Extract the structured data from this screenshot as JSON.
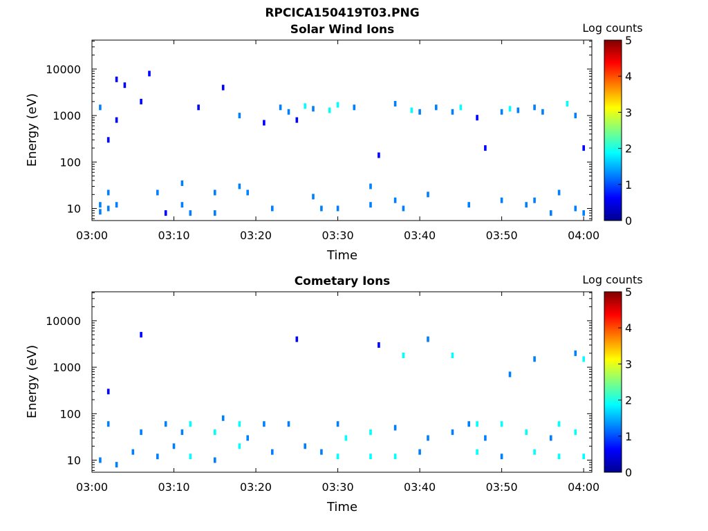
{
  "figure_title": "RPCICA150419T03.PNG",
  "colormap": [
    "#00008f",
    "#0000ff",
    "#0080ff",
    "#00ffff",
    "#80ff80",
    "#ffff00",
    "#ff8000",
    "#ff0000",
    "#800000"
  ],
  "chart_data": [
    {
      "type": "heatmap",
      "title": "Solar Wind Ions",
      "xlabel": "Time",
      "ylabel": "Energy (eV)",
      "xlim": [
        "03:00",
        "04:01"
      ],
      "ylim": [
        5.5,
        42000
      ],
      "y_scale": "log",
      "x_ticks": [
        "03:00",
        "03:10",
        "03:20",
        "03:30",
        "03:40",
        "03:50",
        "04:00"
      ],
      "y_ticks": [
        "10",
        "100",
        "1000",
        "10000"
      ],
      "colorbar": {
        "label": "Log counts",
        "min": 0,
        "max": 5,
        "ticks": [
          "0",
          "1",
          "2",
          "3",
          "4",
          "5"
        ]
      },
      "cells": [
        {
          "t": "03:01",
          "e": 8.5,
          "v": 1.0
        },
        {
          "t": "03:01",
          "e": 12,
          "v": 1.0
        },
        {
          "t": "03:02",
          "e": 10,
          "v": 1.0
        },
        {
          "t": "03:02",
          "e": 22,
          "v": 1.0
        },
        {
          "t": "03:02",
          "e": 300,
          "v": 0.8
        },
        {
          "t": "03:03",
          "e": 12,
          "v": 1.0
        },
        {
          "t": "03:03",
          "e": 800,
          "v": 0.5
        },
        {
          "t": "03:03",
          "e": 6000,
          "v": 0.5
        },
        {
          "t": "03:01",
          "e": 1500,
          "v": 1.0
        },
        {
          "t": "03:04",
          "e": 4500,
          "v": 0.5
        },
        {
          "t": "03:06",
          "e": 2000,
          "v": 0.5
        },
        {
          "t": "03:07",
          "e": 8000,
          "v": 0.5
        },
        {
          "t": "03:08",
          "e": 22,
          "v": 1.0
        },
        {
          "t": "03:09",
          "e": 8,
          "v": 0.8
        },
        {
          "t": "03:11",
          "e": 12,
          "v": 1.0
        },
        {
          "t": "03:11",
          "e": 35,
          "v": 1.2
        },
        {
          "t": "03:12",
          "e": 8,
          "v": 1.0
        },
        {
          "t": "03:13",
          "e": 1500,
          "v": 0.5
        },
        {
          "t": "03:15",
          "e": 22,
          "v": 1.0
        },
        {
          "t": "03:15",
          "e": 8,
          "v": 1.0
        },
        {
          "t": "03:16",
          "e": 4000,
          "v": 0.5
        },
        {
          "t": "03:18",
          "e": 1000,
          "v": 1.2
        },
        {
          "t": "03:18",
          "e": 30,
          "v": 1.0
        },
        {
          "t": "03:19",
          "e": 22,
          "v": 1.0
        },
        {
          "t": "03:21",
          "e": 700,
          "v": 0.5
        },
        {
          "t": "03:22",
          "e": 10,
          "v": 1.0
        },
        {
          "t": "03:23",
          "e": 1500,
          "v": 1.4
        },
        {
          "t": "03:24",
          "e": 1200,
          "v": 1.2
        },
        {
          "t": "03:25",
          "e": 800,
          "v": 0.8
        },
        {
          "t": "03:26",
          "e": 1600,
          "v": 1.6
        },
        {
          "t": "03:27",
          "e": 1400,
          "v": 1.2
        },
        {
          "t": "03:27",
          "e": 18,
          "v": 1.0
        },
        {
          "t": "03:28",
          "e": 10,
          "v": 1.0
        },
        {
          "t": "03:29",
          "e": 1300,
          "v": 1.6
        },
        {
          "t": "03:30",
          "e": 1700,
          "v": 1.8
        },
        {
          "t": "03:30",
          "e": 10,
          "v": 1.0
        },
        {
          "t": "03:32",
          "e": 1500,
          "v": 1.2
        },
        {
          "t": "03:34",
          "e": 12,
          "v": 1.0
        },
        {
          "t": "03:34",
          "e": 30,
          "v": 1.0
        },
        {
          "t": "03:35",
          "e": 140,
          "v": 0.5
        },
        {
          "t": "03:37",
          "e": 15,
          "v": 1.2
        },
        {
          "t": "03:37",
          "e": 1800,
          "v": 1.4
        },
        {
          "t": "03:38",
          "e": 10,
          "v": 1.0
        },
        {
          "t": "03:39",
          "e": 1300,
          "v": 1.6
        },
        {
          "t": "03:40",
          "e": 1200,
          "v": 1.4
        },
        {
          "t": "03:41",
          "e": 20,
          "v": 1.0
        },
        {
          "t": "03:42",
          "e": 1500,
          "v": 1.0
        },
        {
          "t": "03:44",
          "e": 1200,
          "v": 1.2
        },
        {
          "t": "03:45",
          "e": 1500,
          "v": 1.6
        },
        {
          "t": "03:46",
          "e": 12,
          "v": 1.0
        },
        {
          "t": "03:47",
          "e": 900,
          "v": 0.8
        },
        {
          "t": "03:48",
          "e": 200,
          "v": 0.5
        },
        {
          "t": "03:50",
          "e": 15,
          "v": 1.0
        },
        {
          "t": "03:50",
          "e": 1200,
          "v": 1.2
        },
        {
          "t": "03:51",
          "e": 1400,
          "v": 1.6
        },
        {
          "t": "03:52",
          "e": 1300,
          "v": 1.2
        },
        {
          "t": "03:53",
          "e": 12,
          "v": 1.0
        },
        {
          "t": "03:54",
          "e": 15,
          "v": 1.0
        },
        {
          "t": "03:54",
          "e": 1500,
          "v": 1.2
        },
        {
          "t": "03:55",
          "e": 1200,
          "v": 1.4
        },
        {
          "t": "03:56",
          "e": 8,
          "v": 1.0
        },
        {
          "t": "03:57",
          "e": 22,
          "v": 1.0
        },
        {
          "t": "03:58",
          "e": 1800,
          "v": 1.6
        },
        {
          "t": "03:59",
          "e": 1000,
          "v": 1.0
        },
        {
          "t": "03:59",
          "e": 10,
          "v": 1.0
        },
        {
          "t": "04:00",
          "e": 200,
          "v": 0.8
        },
        {
          "t": "04:00",
          "e": 8,
          "v": 1.0
        }
      ]
    },
    {
      "type": "heatmap",
      "title": "Cometary Ions",
      "xlabel": "Time",
      "ylabel": "Energy (eV)",
      "xlim": [
        "03:00",
        "04:01"
      ],
      "ylim": [
        5.5,
        42000
      ],
      "y_scale": "log",
      "x_ticks": [
        "03:00",
        "03:10",
        "03:20",
        "03:30",
        "03:40",
        "03:50",
        "04:00"
      ],
      "y_ticks": [
        "10",
        "100",
        "1000",
        "10000"
      ],
      "colorbar": {
        "label": "Log counts",
        "min": 0,
        "max": 5,
        "ticks": [
          "0",
          "1",
          "2",
          "3",
          "4",
          "5"
        ]
      },
      "cells": [
        {
          "t": "03:01",
          "e": 10,
          "v": 1.0
        },
        {
          "t": "03:02",
          "e": 300,
          "v": 0.8
        },
        {
          "t": "03:02",
          "e": 60,
          "v": 1.0
        },
        {
          "t": "03:03",
          "e": 8,
          "v": 1.0
        },
        {
          "t": "03:05",
          "e": 15,
          "v": 1.0
        },
        {
          "t": "03:06",
          "e": 40,
          "v": 1.2
        },
        {
          "t": "03:06",
          "e": 5000,
          "v": 0.5
        },
        {
          "t": "03:08",
          "e": 12,
          "v": 1.0
        },
        {
          "t": "03:09",
          "e": 60,
          "v": 1.2
        },
        {
          "t": "03:10",
          "e": 20,
          "v": 1.0
        },
        {
          "t": "03:11",
          "e": 40,
          "v": 1.4
        },
        {
          "t": "03:12",
          "e": 60,
          "v": 1.8
        },
        {
          "t": "03:12",
          "e": 12,
          "v": 1.6
        },
        {
          "t": "03:15",
          "e": 40,
          "v": 1.6
        },
        {
          "t": "03:15",
          "e": 10,
          "v": 1.2
        },
        {
          "t": "03:16",
          "e": 80,
          "v": 1.0
        },
        {
          "t": "03:18",
          "e": 60,
          "v": 1.8
        },
        {
          "t": "03:18",
          "e": 20,
          "v": 1.6
        },
        {
          "t": "03:19",
          "e": 30,
          "v": 1.0
        },
        {
          "t": "03:21",
          "e": 60,
          "v": 1.0
        },
        {
          "t": "03:22",
          "e": 15,
          "v": 1.0
        },
        {
          "t": "03:24",
          "e": 60,
          "v": 1.0
        },
        {
          "t": "03:25",
          "e": 4000,
          "v": 0.5
        },
        {
          "t": "03:26",
          "e": 20,
          "v": 1.0
        },
        {
          "t": "03:28",
          "e": 15,
          "v": 1.0
        },
        {
          "t": "03:30",
          "e": 60,
          "v": 1.4
        },
        {
          "t": "03:30",
          "e": 12,
          "v": 1.8
        },
        {
          "t": "03:31",
          "e": 30,
          "v": 1.6
        },
        {
          "t": "03:34",
          "e": 40,
          "v": 1.8
        },
        {
          "t": "03:34",
          "e": 12,
          "v": 2.0
        },
        {
          "t": "03:35",
          "e": 3000,
          "v": 0.8
        },
        {
          "t": "03:37",
          "e": 50,
          "v": 1.4
        },
        {
          "t": "03:37",
          "e": 12,
          "v": 1.6
        },
        {
          "t": "03:38",
          "e": 1800,
          "v": 1.6
        },
        {
          "t": "03:40",
          "e": 15,
          "v": 1.2
        },
        {
          "t": "03:41",
          "e": 30,
          "v": 1.0
        },
        {
          "t": "03:41",
          "e": 4000,
          "v": 1.0
        },
        {
          "t": "03:44",
          "e": 1800,
          "v": 1.6
        },
        {
          "t": "03:44",
          "e": 40,
          "v": 1.2
        },
        {
          "t": "03:46",
          "e": 60,
          "v": 1.0
        },
        {
          "t": "03:47",
          "e": 60,
          "v": 1.8
        },
        {
          "t": "03:47",
          "e": 15,
          "v": 1.6
        },
        {
          "t": "03:48",
          "e": 30,
          "v": 1.4
        },
        {
          "t": "03:50",
          "e": 60,
          "v": 1.6
        },
        {
          "t": "03:50",
          "e": 12,
          "v": 1.4
        },
        {
          "t": "03:51",
          "e": 700,
          "v": 1.0
        },
        {
          "t": "03:53",
          "e": 40,
          "v": 1.8
        },
        {
          "t": "03:54",
          "e": 15,
          "v": 1.8
        },
        {
          "t": "03:54",
          "e": 1500,
          "v": 1.4
        },
        {
          "t": "03:56",
          "e": 30,
          "v": 1.2
        },
        {
          "t": "03:57",
          "e": 60,
          "v": 1.6
        },
        {
          "t": "03:57",
          "e": 12,
          "v": 1.6
        },
        {
          "t": "03:59",
          "e": 2000,
          "v": 1.0
        },
        {
          "t": "03:59",
          "e": 40,
          "v": 1.6
        },
        {
          "t": "04:00",
          "e": 12,
          "v": 1.8
        },
        {
          "t": "04:00",
          "e": 1500,
          "v": 1.6
        }
      ]
    }
  ]
}
